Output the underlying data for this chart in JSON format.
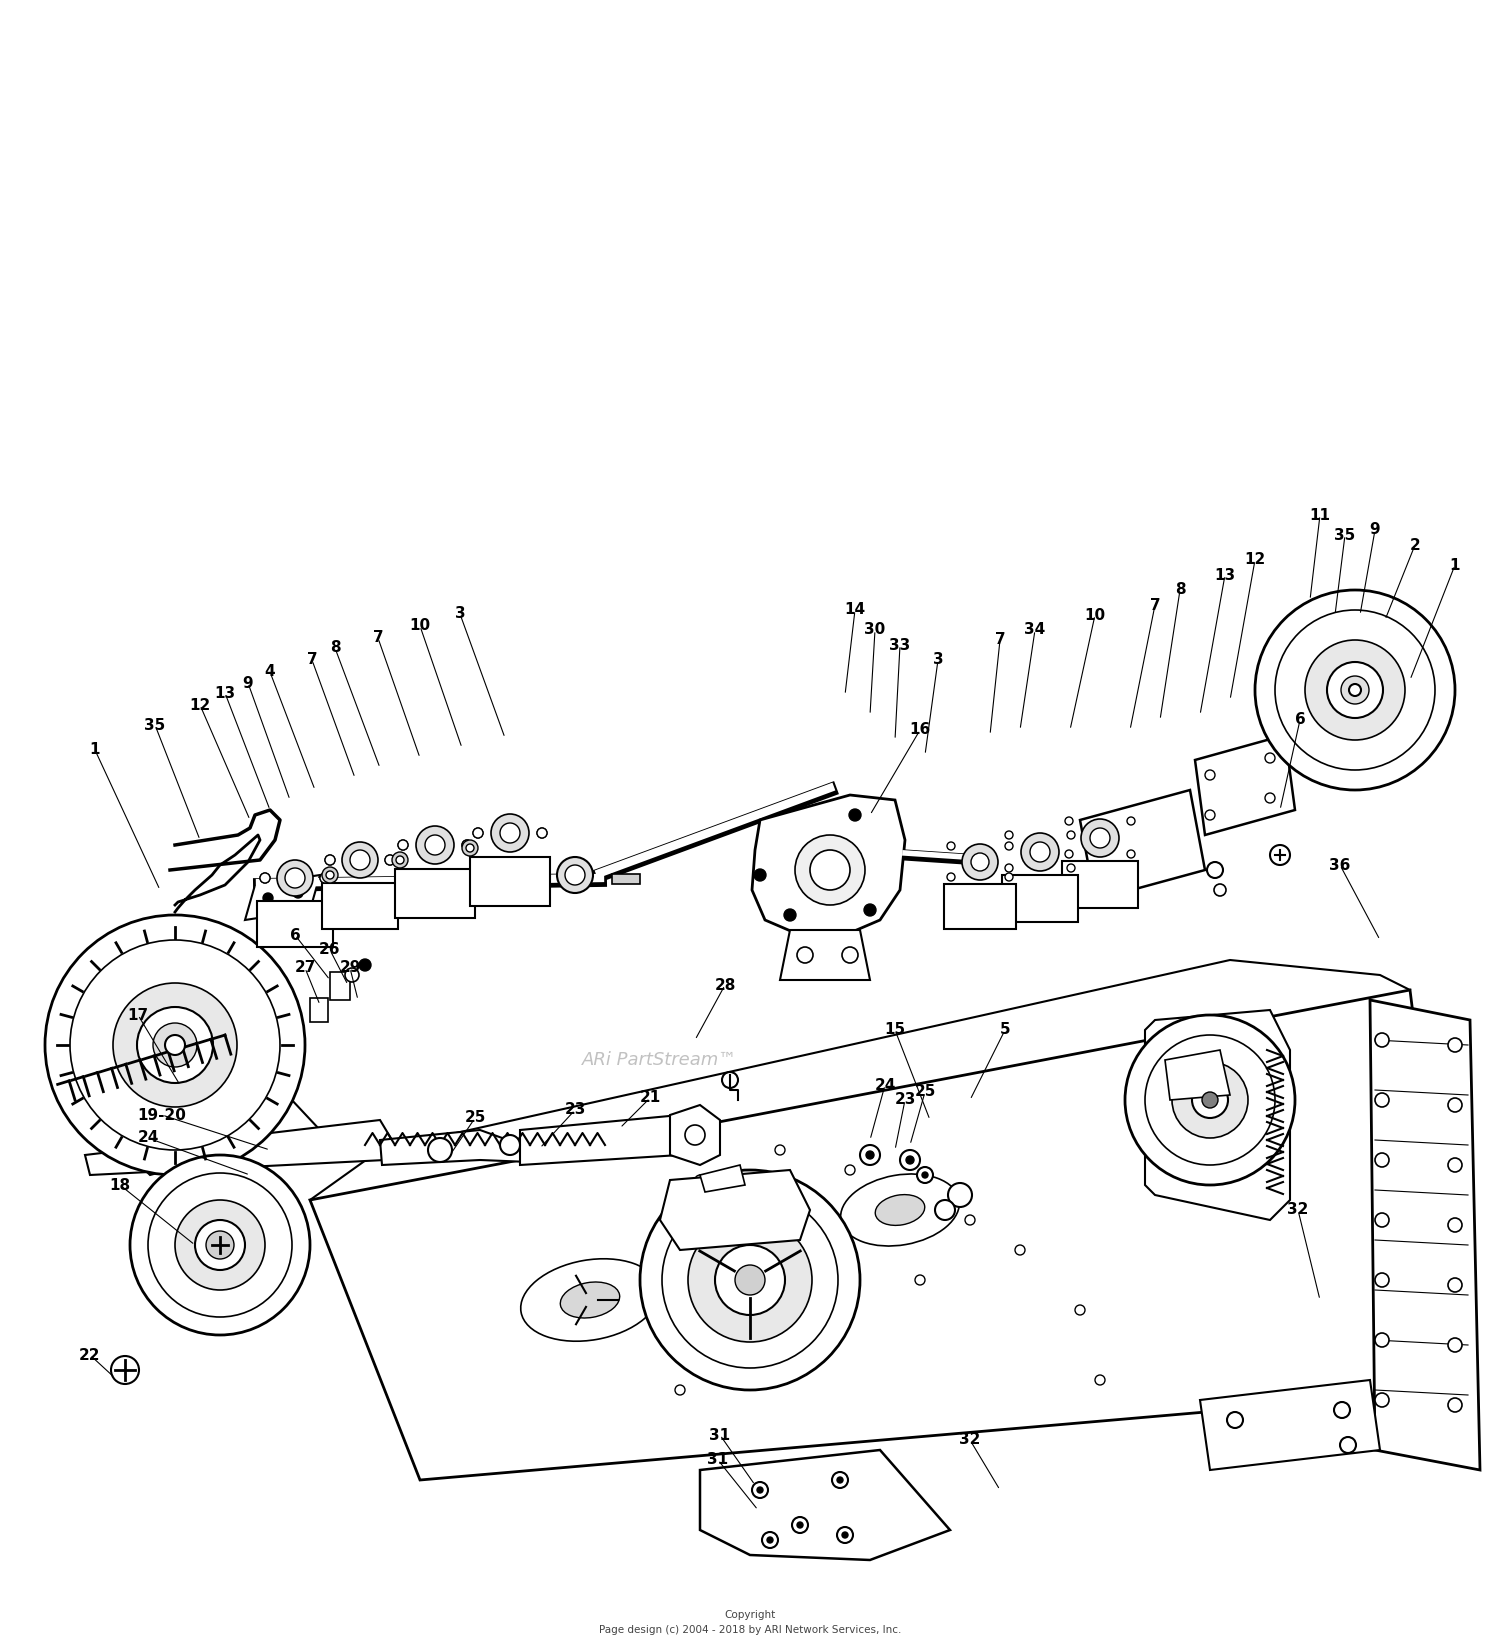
{
  "bg_color": "#ffffff",
  "copyright_line1": "Copyright",
  "copyright_line2": "Page design (c) 2004 - 2018 by ARI Network Services, Inc.",
  "watermark": "ARi PartStream™",
  "fig_width": 15.0,
  "fig_height": 16.52
}
